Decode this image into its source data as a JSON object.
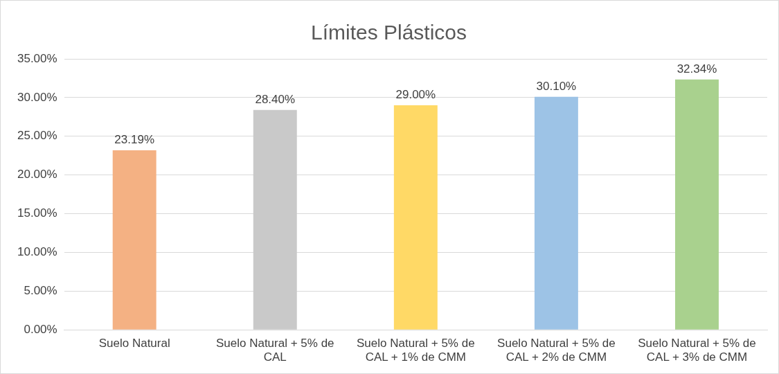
{
  "chart_data": {
    "type": "bar",
    "title": "Límites Plásticos",
    "categories": [
      "Suelo Natural",
      "Suelo Natural + 5% de CAL",
      "Suelo Natural + 5% de CAL + 1% de CMM",
      "Suelo Natural + 5% de CAL + 2% de CMM",
      "Suelo Natural + 5% de CAL + 3% de CMM"
    ],
    "values": [
      23.19,
      28.4,
      29.0,
      30.1,
      32.34
    ],
    "value_labels": [
      "23.19%",
      "28.40%",
      "29.00%",
      "30.10%",
      "32.34%"
    ],
    "colors": [
      "#f4b183",
      "#c9c9c9",
      "#ffd966",
      "#9dc3e6",
      "#a9d18e"
    ],
    "ylim": [
      0,
      35
    ],
    "yticks": [
      {
        "value": 0,
        "label": "0.00%"
      },
      {
        "value": 5,
        "label": "5.00%"
      },
      {
        "value": 10,
        "label": "10.00%"
      },
      {
        "value": 15,
        "label": "15.00%"
      },
      {
        "value": 20,
        "label": "20.00%"
      },
      {
        "value": 25,
        "label": "25.00%"
      },
      {
        "value": 30,
        "label": "30.00%"
      },
      {
        "value": 35,
        "label": "35.00%"
      }
    ],
    "grid": "y",
    "legend": false
  }
}
